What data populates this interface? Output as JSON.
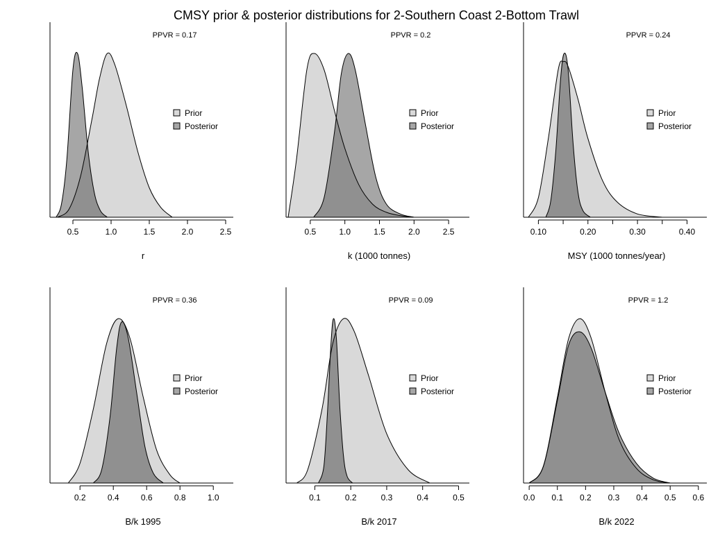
{
  "figure": {
    "title": "CMSY prior & posterior distributions for 2-Southern Coast 2-Bottom Trawl",
    "legend_prior": "Prior",
    "legend_posterior": "Posterior",
    "colors": {
      "prior": "#d9d9d9",
      "posterior": "#a6a6a6",
      "overlap": "#909090",
      "line": "#000000"
    }
  },
  "chart_data": [
    {
      "type": "area",
      "xlabel": "r",
      "ppvr_label": "PPVR = 0.17",
      "xlim": [
        0.2,
        2.6
      ],
      "ticks": [
        0.5,
        1.0,
        1.5,
        2.0,
        2.5
      ],
      "tick_labels": [
        "0.5",
        "1.0",
        "1.5",
        "2.0",
        "2.5"
      ],
      "series": [
        {
          "name": "Prior",
          "x": [
            0.3,
            0.45,
            0.6,
            0.75,
            0.85,
            0.95,
            1.05,
            1.2,
            1.35,
            1.5,
            1.65,
            1.8
          ],
          "density": [
            0.0,
            0.05,
            0.25,
            0.6,
            0.85,
            1.0,
            0.93,
            0.68,
            0.4,
            0.18,
            0.06,
            0.0
          ]
        },
        {
          "name": "Posterior",
          "x": [
            0.28,
            0.35,
            0.42,
            0.5,
            0.56,
            0.62,
            0.7,
            0.78,
            0.86,
            0.95
          ],
          "density": [
            0.0,
            0.08,
            0.35,
            0.9,
            1.0,
            0.8,
            0.4,
            0.15,
            0.04,
            0.0
          ]
        }
      ]
    },
    {
      "type": "area",
      "xlabel": "k (1000 tonnes)",
      "ppvr_label": "PPVR = 0.2",
      "xlim": [
        0.15,
        2.8
      ],
      "ticks": [
        0.5,
        1.0,
        1.5,
        2.0,
        2.5
      ],
      "tick_labels": [
        "0.5",
        "1.0",
        "1.5",
        "2.0",
        "2.5"
      ],
      "series": [
        {
          "name": "Prior",
          "x": [
            0.18,
            0.3,
            0.45,
            0.56,
            0.7,
            0.85,
            1.0,
            1.2,
            1.4,
            1.6,
            1.8,
            2.0
          ],
          "density": [
            0.0,
            0.35,
            0.9,
            1.0,
            0.9,
            0.65,
            0.42,
            0.2,
            0.08,
            0.03,
            0.01,
            0.0
          ]
        },
        {
          "name": "Posterior",
          "x": [
            0.55,
            0.7,
            0.85,
            0.95,
            1.05,
            1.15,
            1.3,
            1.45,
            1.6,
            1.8,
            2.0
          ],
          "density": [
            0.0,
            0.12,
            0.52,
            0.88,
            1.0,
            0.9,
            0.56,
            0.24,
            0.08,
            0.02,
            0.0
          ]
        }
      ]
    },
    {
      "type": "area",
      "xlabel": "MSY (1000 tonnes/year)",
      "ppvr_label": "PPVR = 0.24",
      "xlim": [
        0.07,
        0.44
      ],
      "ticks": [
        0.1,
        0.15,
        0.2,
        0.25,
        0.3,
        0.35,
        0.4
      ],
      "tick_labels": [
        "0.10",
        "",
        "0.20",
        "",
        "0.30",
        "",
        "0.40"
      ],
      "series": [
        {
          "name": "Prior",
          "x": [
            0.08,
            0.1,
            0.12,
            0.14,
            0.15,
            0.16,
            0.18,
            0.2,
            0.23,
            0.26,
            0.3,
            0.35
          ],
          "density": [
            0.0,
            0.12,
            0.48,
            0.9,
            0.95,
            0.92,
            0.72,
            0.48,
            0.22,
            0.09,
            0.02,
            0.0
          ]
        },
        {
          "name": "Posterior",
          "x": [
            0.115,
            0.125,
            0.135,
            0.145,
            0.152,
            0.16,
            0.17,
            0.18,
            0.19,
            0.205
          ],
          "density": [
            0.0,
            0.1,
            0.4,
            0.85,
            1.0,
            0.9,
            0.45,
            0.15,
            0.04,
            0.0
          ]
        }
      ]
    },
    {
      "type": "area",
      "xlabel": "B/k 1995",
      "ppvr_label": "PPVR = 0.36",
      "xlim": [
        0.02,
        1.12
      ],
      "ticks": [
        0.2,
        0.4,
        0.6,
        0.8,
        1.0
      ],
      "tick_labels": [
        "0.2",
        "0.4",
        "0.6",
        "0.8",
        "1.0"
      ],
      "series": [
        {
          "name": "Prior",
          "x": [
            0.13,
            0.2,
            0.28,
            0.36,
            0.43,
            0.5,
            0.58,
            0.66,
            0.74,
            0.8
          ],
          "density": [
            0.0,
            0.12,
            0.45,
            0.85,
            1.0,
            0.88,
            0.52,
            0.2,
            0.05,
            0.0
          ]
        },
        {
          "name": "Posterior",
          "x": [
            0.28,
            0.33,
            0.38,
            0.42,
            0.45,
            0.49,
            0.54,
            0.59,
            0.64,
            0.7
          ],
          "density": [
            0.0,
            0.08,
            0.4,
            0.82,
            0.98,
            0.88,
            0.55,
            0.22,
            0.06,
            0.0
          ]
        }
      ]
    },
    {
      "type": "area",
      "xlabel": "B/k 2017",
      "ppvr_label": "PPVR = 0.09",
      "xlim": [
        0.02,
        0.53
      ],
      "ticks": [
        0.1,
        0.2,
        0.3,
        0.4,
        0.5
      ],
      "tick_labels": [
        "0.1",
        "0.2",
        "0.3",
        "0.4",
        "0.5"
      ],
      "series": [
        {
          "name": "Prior",
          "x": [
            0.05,
            0.08,
            0.12,
            0.15,
            0.18,
            0.21,
            0.25,
            0.3,
            0.36,
            0.42
          ],
          "density": [
            0.0,
            0.08,
            0.45,
            0.85,
            1.0,
            0.92,
            0.65,
            0.3,
            0.08,
            0.0
          ]
        },
        {
          "name": "Posterior",
          "x": [
            0.11,
            0.125,
            0.135,
            0.145,
            0.152,
            0.16,
            0.17,
            0.18,
            0.19,
            0.205
          ],
          "density": [
            0.0,
            0.1,
            0.42,
            0.85,
            1.0,
            0.88,
            0.45,
            0.16,
            0.04,
            0.0
          ]
        }
      ]
    },
    {
      "type": "area",
      "xlabel": "B/k 2022",
      "ppvr_label": "PPVR = 1.2",
      "xlim": [
        -0.02,
        0.63
      ],
      "ticks": [
        0.0,
        0.1,
        0.2,
        0.3,
        0.4,
        0.5,
        0.6
      ],
      "tick_labels": [
        "0.0",
        "0.1",
        "0.2",
        "0.3",
        "0.4",
        "0.5",
        "0.6"
      ],
      "series": [
        {
          "name": "Prior",
          "x": [
            0.0,
            0.05,
            0.1,
            0.14,
            0.18,
            0.22,
            0.27,
            0.32,
            0.38,
            0.44,
            0.5
          ],
          "density": [
            0.0,
            0.1,
            0.52,
            0.88,
            1.0,
            0.88,
            0.55,
            0.26,
            0.09,
            0.02,
            0.0
          ]
        },
        {
          "name": "Posterior",
          "x": [
            0.0,
            0.05,
            0.1,
            0.14,
            0.18,
            0.22,
            0.27,
            0.32,
            0.38,
            0.44,
            0.5
          ],
          "density": [
            0.0,
            0.1,
            0.5,
            0.84,
            0.92,
            0.82,
            0.55,
            0.3,
            0.12,
            0.03,
            0.0
          ]
        }
      ]
    }
  ]
}
